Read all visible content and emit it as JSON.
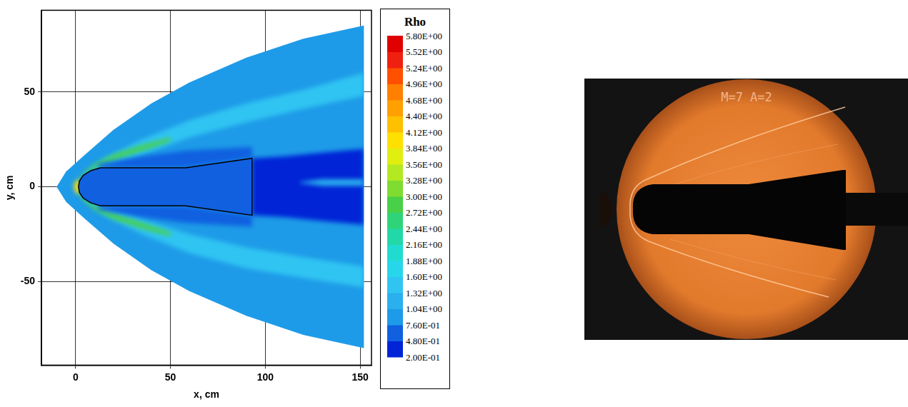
{
  "chart_data": {
    "type": "contour",
    "x_label": "x, cm",
    "y_label": "y, cm",
    "xlim": [
      -18,
      156
    ],
    "xticks": [
      0,
      50,
      100,
      150
    ],
    "ylim": [
      -94,
      93
    ],
    "yticks": [
      -50,
      0,
      50
    ],
    "grid": true,
    "colorbar": {
      "title": "Rho",
      "range": [
        0.2,
        5.8
      ],
      "ticks": [
        {
          "value": 5.8,
          "label": "5.80E+00"
        },
        {
          "value": 5.52,
          "label": "5.52E+00"
        },
        {
          "value": 5.24,
          "label": "5.24E+00"
        },
        {
          "value": 4.96,
          "label": "4.96E+00"
        },
        {
          "value": 4.68,
          "label": "4.68E+00"
        },
        {
          "value": 4.4,
          "label": "4.40E+00"
        },
        {
          "value": 4.12,
          "label": "4.12E+00"
        },
        {
          "value": 3.84,
          "label": "3.84E+00"
        },
        {
          "value": 3.56,
          "label": "3.56E+00"
        },
        {
          "value": 3.28,
          "label": "3.28E+00"
        },
        {
          "value": 3.0,
          "label": "3.00E+00"
        },
        {
          "value": 2.72,
          "label": "2.72E+00"
        },
        {
          "value": 2.44,
          "label": "2.44E+00"
        },
        {
          "value": 2.16,
          "label": "2.16E+00"
        },
        {
          "value": 1.88,
          "label": "1.88E+00"
        },
        {
          "value": 1.6,
          "label": "1.60E+00"
        },
        {
          "value": 1.32,
          "label": "1.32E+00"
        },
        {
          "value": 1.04,
          "label": "1.04E+00"
        },
        {
          "value": 0.76,
          "label": "7.60E-01"
        },
        {
          "value": 0.48,
          "label": "4.80E-01"
        },
        {
          "value": 0.2,
          "label": "2.00E-01"
        }
      ],
      "colors": [
        "#0024d6",
        "#1060e0",
        "#1e9be8",
        "#2ab0ee",
        "#30c4f2",
        "#28d6ec",
        "#20dcd0",
        "#22d8a8",
        "#30d478",
        "#48d048",
        "#80dc30",
        "#b4e820",
        "#e0ee10",
        "#ffe000",
        "#ffc000",
        "#ffa000",
        "#ff8000",
        "#ff5000",
        "#f02010",
        "#e00000"
      ]
    },
    "domain": {
      "rho": 1.0,
      "x": [
        152,
        120,
        90,
        60,
        40,
        20,
        5,
        -5,
        -10,
        -5,
        5,
        20,
        40,
        60,
        90,
        120,
        152
      ],
      "y": [
        85,
        78,
        68,
        55,
        44,
        30,
        17,
        8,
        0,
        -8,
        -17,
        -30,
        -44,
        -55,
        -68,
        -78,
        -85
      ]
    },
    "regions": [
      {
        "rho": 1.45,
        "x": [
          3,
          15,
          35,
          60,
          90,
          120,
          152,
          152,
          120,
          90,
          60,
          35,
          15,
          5
        ],
        "y": [
          5,
          15,
          25,
          35,
          44,
          51,
          60,
          48,
          41,
          34,
          26,
          17,
          10,
          4
        ]
      },
      {
        "rho": 1.45,
        "x": [
          3,
          15,
          35,
          60,
          90,
          120,
          152,
          152,
          120,
          90,
          60,
          35,
          15,
          5
        ],
        "y": [
          -5,
          -15,
          -25,
          -35,
          -43,
          -48,
          -53,
          -42,
          -37,
          -32,
          -25,
          -17,
          -10,
          -4
        ]
      },
      {
        "rho": 2.9,
        "x": [
          1,
          4,
          10,
          20,
          35,
          50,
          50,
          35,
          20,
          10,
          5,
          2
        ],
        "y": [
          2,
          7,
          12,
          17,
          22,
          26,
          24,
          19,
          14,
          10,
          6,
          2
        ]
      },
      {
        "rho": 2.9,
        "x": [
          1,
          4,
          10,
          20,
          35,
          50,
          50,
          35,
          20,
          10,
          5,
          2
        ],
        "y": [
          -2,
          -7,
          -12,
          -17,
          -22,
          -26,
          -24,
          -19,
          -14,
          -10,
          -6,
          -2
        ]
      },
      {
        "rho": 4.0,
        "x": [
          -1,
          0,
          2,
          3,
          2,
          0
        ],
        "y": [
          0,
          3,
          4,
          0,
          -4,
          -3
        ]
      },
      {
        "rho": 0.6,
        "x": [
          12,
          35,
          58,
          93,
          93,
          58,
          35,
          12
        ],
        "y": [
          10,
          10,
          10,
          15,
          21,
          19,
          16,
          12
        ]
      },
      {
        "rho": 0.6,
        "x": [
          12,
          35,
          58,
          93,
          93,
          58,
          35,
          12
        ],
        "y": [
          -10,
          -10,
          -10,
          -15,
          -21,
          -19,
          -16,
          -12
        ]
      },
      {
        "rho": 0.4,
        "x": [
          93,
          110,
          130,
          152,
          152,
          130,
          110,
          93
        ],
        "y": [
          15,
          16,
          18,
          20,
          -20,
          -18,
          -16,
          -15
        ]
      },
      {
        "rho": 1.2,
        "x": [
          118,
          130,
          152,
          152,
          130,
          118
        ],
        "y": [
          2.5,
          4,
          4,
          0.5,
          0.5,
          2
        ]
      }
    ],
    "body": {
      "rho": 0.6,
      "x": [
        13,
        8,
        4,
        2,
        1.5,
        2,
        4,
        8,
        13,
        58,
        93,
        93,
        58
      ],
      "y": [
        10,
        8.5,
        6,
        3,
        0,
        -3,
        -6,
        -8.5,
        -10,
        -10,
        -15,
        15,
        10
      ]
    }
  },
  "photo": {
    "label": "M=7 A=2"
  }
}
